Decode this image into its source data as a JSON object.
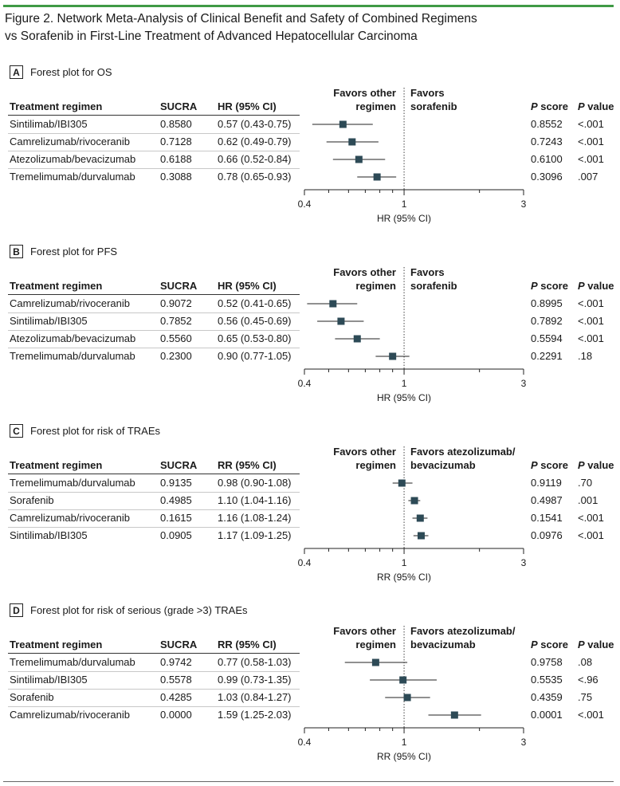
{
  "figure": {
    "title_line1": "Figure 2. Network Meta-Analysis of Clinical Benefit and Safety of Combined Regimens",
    "title_line2": "vs Sorafenib in First-Line Treatment of Advanced Hepatocellular Carcinoma"
  },
  "headers": {
    "regimen": "Treatment regimen",
    "sucra": "SUCRA",
    "p_letter": "P",
    "p_score_rest": " score",
    "p_value_rest": " value"
  },
  "colors": {
    "accent": "#3f9a45",
    "marker": "#2d4a56"
  },
  "chart_data": [
    {
      "type": "forest",
      "letter": "A",
      "title": "Forest plot for OS",
      "effect_header": "HR (95% CI)",
      "favors_left": "Favors other\nregimen",
      "favors_right": "Favors\nsorafenib",
      "xlabel": "HR (95% CI)",
      "scale": "log",
      "xlim": [
        0.4,
        3
      ],
      "ticks": [
        "0.4",
        "1",
        "3"
      ],
      "reference_line": 1,
      "rows": [
        {
          "regimen": "Sintilimab/IBI305",
          "sucra": "0.8580",
          "ci_text": "0.57 (0.43-0.75)",
          "est": 0.57,
          "lo": 0.43,
          "hi": 0.75,
          "p_score": "0.8552",
          "p_value": "<.001"
        },
        {
          "regimen": "Camrelizumab/rivoceranib",
          "sucra": "0.7128",
          "ci_text": "0.62 (0.49-0.79)",
          "est": 0.62,
          "lo": 0.49,
          "hi": 0.79,
          "p_score": "0.7243",
          "p_value": "<.001"
        },
        {
          "regimen": "Atezolizumab/bevacizumab",
          "sucra": "0.6188",
          "ci_text": "0.66 (0.52-0.84)",
          "est": 0.66,
          "lo": 0.52,
          "hi": 0.84,
          "p_score": "0.6100",
          "p_value": "<.001"
        },
        {
          "regimen": "Tremelimumab/durvalumab",
          "sucra": "0.3088",
          "ci_text": "0.78 (0.65-0.93)",
          "est": 0.78,
          "lo": 0.65,
          "hi": 0.93,
          "p_score": "0.3096",
          "p_value": ".007"
        }
      ]
    },
    {
      "type": "forest",
      "letter": "B",
      "title": "Forest plot for PFS",
      "effect_header": "HR (95% CI)",
      "favors_left": "Favors other\nregimen",
      "favors_right": "Favors\nsorafenib",
      "xlabel": "HR (95% CI)",
      "scale": "log",
      "xlim": [
        0.4,
        3
      ],
      "ticks": [
        "0.4",
        "1",
        "3"
      ],
      "reference_line": 1,
      "rows": [
        {
          "regimen": "Camrelizumab/rivoceranib",
          "sucra": "0.9072",
          "ci_text": "0.52 (0.41-0.65)",
          "est": 0.52,
          "lo": 0.41,
          "hi": 0.65,
          "p_score": "0.8995",
          "p_value": "<.001"
        },
        {
          "regimen": "Sintilimab/IBI305",
          "sucra": "0.7852",
          "ci_text": "0.56 (0.45-0.69)",
          "est": 0.56,
          "lo": 0.45,
          "hi": 0.69,
          "p_score": "0.7892",
          "p_value": "<.001"
        },
        {
          "regimen": "Atezolizumab/bevacizumab",
          "sucra": "0.5560",
          "ci_text": "0.65 (0.53-0.80)",
          "est": 0.65,
          "lo": 0.53,
          "hi": 0.8,
          "p_score": "0.5594",
          "p_value": "<.001"
        },
        {
          "regimen": "Tremelimumab/durvalumab",
          "sucra": "0.2300",
          "ci_text": "0.90 (0.77-1.05)",
          "est": 0.9,
          "lo": 0.77,
          "hi": 1.05,
          "p_score": "0.2291",
          "p_value": ".18"
        }
      ]
    },
    {
      "type": "forest",
      "letter": "C",
      "title": "Forest plot for risk of TRAEs",
      "effect_header": "RR (95% CI)",
      "favors_left": "Favors other\nregimen",
      "favors_right": "Favors atezolizumab/\nbevacizumab",
      "xlabel": "RR (95% CI)",
      "scale": "log",
      "xlim": [
        0.4,
        3
      ],
      "ticks": [
        "0.4",
        "1",
        "3"
      ],
      "reference_line": 1,
      "rows": [
        {
          "regimen": "Tremelimumab/durvalumab",
          "sucra": "0.9135",
          "ci_text": "0.98 (0.90-1.08)",
          "est": 0.98,
          "lo": 0.9,
          "hi": 1.08,
          "p_score": "0.9119",
          "p_value": ".70"
        },
        {
          "regimen": "Sorafenib",
          "sucra": "0.4985",
          "ci_text": "1.10 (1.04-1.16)",
          "est": 1.1,
          "lo": 1.04,
          "hi": 1.16,
          "p_score": "0.4987",
          "p_value": ".001"
        },
        {
          "regimen": "Camrelizumab/rivoceranib",
          "sucra": "0.1615",
          "ci_text": "1.16 (1.08-1.24)",
          "est": 1.16,
          "lo": 1.08,
          "hi": 1.24,
          "p_score": "0.1541",
          "p_value": "<.001"
        },
        {
          "regimen": "Sintilimab/IBI305",
          "sucra": "0.0905",
          "ci_text": "1.17 (1.09-1.25)",
          "est": 1.17,
          "lo": 1.09,
          "hi": 1.25,
          "p_score": "0.0976",
          "p_value": "<.001"
        }
      ]
    },
    {
      "type": "forest",
      "letter": "D",
      "title": "Forest plot for risk of serious (grade >3) TRAEs",
      "effect_header": "RR (95% CI)",
      "favors_left": "Favors other\nregimen",
      "favors_right": "Favors atezolizumab/\nbevacizumab",
      "xlabel": "RR (95% CI)",
      "scale": "log",
      "xlim": [
        0.4,
        3
      ],
      "ticks": [
        "0.4",
        "1",
        "3"
      ],
      "reference_line": 1,
      "rows": [
        {
          "regimen": "Tremelimumab/durvalumab",
          "sucra": "0.9742",
          "ci_text": "0.77 (0.58-1.03)",
          "est": 0.77,
          "lo": 0.58,
          "hi": 1.03,
          "p_score": "0.9758",
          "p_value": ".08"
        },
        {
          "regimen": "Sintilimab/IBI305",
          "sucra": "0.5578",
          "ci_text": "0.99 (0.73-1.35)",
          "est": 0.99,
          "lo": 0.73,
          "hi": 1.35,
          "p_score": "0.5535",
          "p_value": "<.96"
        },
        {
          "regimen": "Sorafenib",
          "sucra": "0.4285",
          "ci_text": "1.03 (0.84-1.27)",
          "est": 1.03,
          "lo": 0.84,
          "hi": 1.27,
          "p_score": "0.4359",
          "p_value": ".75"
        },
        {
          "regimen": "Camrelizumab/rivoceranib",
          "sucra": "0.0000",
          "ci_text": "1.59 (1.25-2.03)",
          "est": 1.59,
          "lo": 1.25,
          "hi": 2.03,
          "p_score": "0.0001",
          "p_value": "<.001"
        }
      ]
    }
  ]
}
